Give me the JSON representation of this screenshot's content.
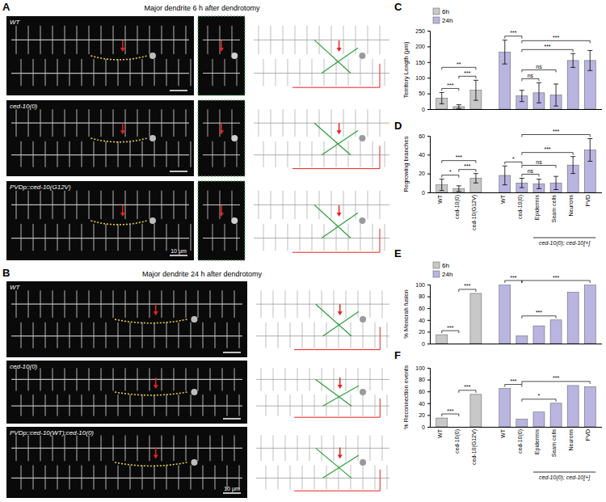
{
  "figure": {
    "panel_labels": [
      "A",
      "B",
      "C",
      "D",
      "E",
      "F"
    ],
    "A": {
      "title": "Major dendrite 6 h after dendrotomy",
      "rows": [
        "WT",
        "ced-10(0)",
        "PVDp::ced-10(G12V)"
      ],
      "scale_bar": "10 μm"
    },
    "B": {
      "title": "Major dendrite 24 h after dendrotomy",
      "rows": [
        "WT",
        "ced-10(0)",
        "PVDp::ced-10(WT);ced-10(0)"
      ],
      "scale_bar": "10 μm"
    }
  },
  "chart_data": [
    {
      "type": "bar",
      "y_label": "Territory Length (μm)",
      "categories": [
        null,
        null,
        null,
        null,
        null,
        null,
        null,
        null,
        null
      ],
      "ylim": [
        0,
        250
      ],
      "yticks": [
        0,
        50,
        100,
        150,
        200,
        250
      ],
      "legend": "top-left",
      "series": [
        {
          "name": "6h",
          "color": "#c8c8c8",
          "values": [
            35,
            8,
            60,
            null,
            null,
            null,
            null,
            null,
            null
          ],
          "errors": [
            18,
            6,
            32,
            null,
            null,
            null,
            null,
            null,
            null
          ]
        },
        {
          "name": "24h",
          "color": "#b8b5e0",
          "values": [
            null,
            null,
            null,
            182,
            42,
            52,
            45,
            155,
            155
          ],
          "errors": [
            null,
            null,
            null,
            38,
            18,
            32,
            35,
            22,
            32
          ]
        }
      ],
      "annotations": [
        {
          "text": "***",
          "between": [
            0,
            1
          ]
        },
        {
          "text": "***",
          "between": [
            1,
            2
          ]
        },
        {
          "text": "**",
          "between": [
            0,
            2
          ]
        },
        {
          "text": "***",
          "between": [
            3,
            4
          ]
        },
        {
          "text": "ns",
          "between": [
            4,
            5
          ]
        },
        {
          "text": "ns",
          "between": [
            4,
            6
          ]
        },
        {
          "text": "***",
          "between": [
            4,
            7
          ]
        },
        {
          "text": "***",
          "between": [
            4,
            8
          ]
        }
      ]
    },
    {
      "type": "bar",
      "y_label": "Regrowing branches",
      "categories": [
        "WT",
        "ced-10(0)",
        "ced-10(G12V)",
        "WT",
        "ced-10(0)",
        "Epidermis",
        "Seam cells",
        "Neurons",
        "PVD"
      ],
      "ylim": [
        0,
        60
      ],
      "yticks": [
        0,
        20,
        40,
        60
      ],
      "series": [
        {
          "color": "#c8c8c8",
          "values": [
            8,
            4,
            15,
            null,
            null,
            null,
            null,
            null,
            null
          ],
          "errors": [
            6,
            3,
            5,
            null,
            null,
            null,
            null,
            null,
            null
          ]
        },
        {
          "color": "#b8b5e0",
          "values": [
            null,
            null,
            null,
            18,
            10,
            9,
            10,
            29,
            45
          ],
          "errors": [
            null,
            null,
            null,
            10,
            5,
            5,
            7,
            9,
            12
          ]
        }
      ],
      "annotations": [
        {
          "text": "*",
          "between": [
            0,
            1
          ]
        },
        {
          "text": "***",
          "between": [
            1,
            2
          ]
        },
        {
          "text": "***",
          "between": [
            0,
            2
          ]
        },
        {
          "text": "*",
          "between": [
            3,
            4
          ]
        },
        {
          "text": "ns",
          "between": [
            4,
            5
          ]
        },
        {
          "text": "ns",
          "between": [
            4,
            6
          ]
        },
        {
          "text": "***",
          "between": [
            4,
            7
          ]
        },
        {
          "text": "***",
          "between": [
            4,
            8
          ]
        }
      ],
      "groups": [
        {
          "label": "ced-10(0); ced-10[+]",
          "from": 5,
          "to": 8
        }
      ]
    },
    {
      "type": "bar",
      "y_label": "% Menorah fusion",
      "categories": [
        null,
        null,
        null,
        null,
        null,
        null,
        null,
        null,
        null
      ],
      "ylim": [
        0,
        100
      ],
      "yticks": [
        0,
        20,
        40,
        60,
        80,
        100
      ],
      "legend": "top-left",
      "series": [
        {
          "name": "6h",
          "color": "#c8c8c8",
          "values": [
            15,
            0,
            85,
            null,
            null,
            null,
            null,
            null,
            null
          ]
        },
        {
          "name": "24h",
          "color": "#b8b5e0",
          "values": [
            null,
            null,
            null,
            100,
            13,
            30,
            40,
            87,
            100
          ]
        }
      ],
      "annotations": [
        {
          "text": "***",
          "between": [
            0,
            1
          ]
        },
        {
          "text": "***",
          "between": [
            1,
            2
          ]
        },
        {
          "text": "***",
          "between": [
            3,
            4
          ]
        },
        {
          "text": "***",
          "between": [
            4,
            6
          ]
        },
        {
          "text": "***",
          "between": [
            4,
            8
          ]
        }
      ]
    },
    {
      "type": "bar",
      "y_label": "% Reconnection events",
      "categories": [
        "WT",
        "ced-10(0)",
        "ced-10(G12V)",
        "WT",
        "ced-10(0)",
        "Epidermis",
        "Seam cells",
        "Neurons",
        "PVD"
      ],
      "ylim": [
        0,
        100
      ],
      "yticks": [
        0,
        20,
        40,
        60,
        80,
        100
      ],
      "series": [
        {
          "color": "#c8c8c8",
          "values": [
            15,
            0,
            55,
            null,
            null,
            null,
            null,
            null,
            null
          ]
        },
        {
          "color": "#b8b5e0",
          "values": [
            null,
            null,
            null,
            65,
            13,
            25,
            40,
            70,
            68
          ]
        }
      ],
      "annotations": [
        {
          "text": "***",
          "between": [
            0,
            1
          ]
        },
        {
          "text": "***",
          "between": [
            1,
            2
          ]
        },
        {
          "text": "***",
          "between": [
            3,
            4
          ]
        },
        {
          "text": "*",
          "between": [
            4,
            6
          ]
        },
        {
          "text": "***",
          "between": [
            4,
            8
          ]
        }
      ],
      "groups": [
        {
          "label": "ced-10(0); ced-10[+]",
          "from": 5,
          "to": 8
        }
      ]
    }
  ]
}
